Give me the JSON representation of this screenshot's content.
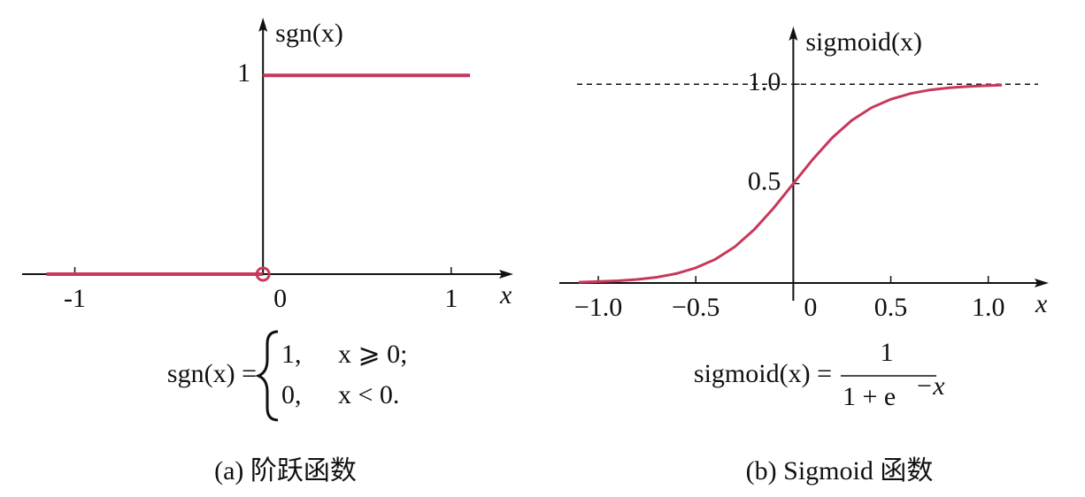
{
  "chart_data": [
    {
      "type": "line",
      "x_label": "x",
      "y_label": "sgn(x)",
      "x": [
        -1.15,
        0,
        0,
        0,
        1.1
      ],
      "values": [
        0,
        0,
        null,
        1,
        1
      ],
      "color": "#c8385a",
      "open_marker": [
        0,
        0
      ],
      "xlim": [
        -1.28,
        1.33
      ],
      "ylim": [
        0,
        1.29
      ],
      "xticks": [
        -1,
        0,
        1
      ],
      "yticks": [
        1
      ],
      "formula": {
        "lhs": "sgn(x) =",
        "cases": [
          [
            "1,",
            "x ⩾ 0;"
          ],
          [
            "0,",
            "x < 0."
          ]
        ]
      },
      "caption": "(a) 阶跃函数"
    },
    {
      "type": "line",
      "x_label": "x",
      "y_label": "sigmoid(x)",
      "x": [
        -1.1,
        -1.0,
        -0.9,
        -0.8,
        -0.7,
        -0.6,
        -0.5,
        -0.4,
        -0.3,
        -0.2,
        -0.1,
        0,
        0.1,
        0.2,
        0.3,
        0.4,
        0.5,
        0.6,
        0.7,
        0.8,
        0.9,
        1.0,
        1.07
      ],
      "values": [
        0.004,
        0.007,
        0.011,
        0.018,
        0.029,
        0.047,
        0.076,
        0.119,
        0.182,
        0.269,
        0.378,
        0.5,
        0.622,
        0.731,
        0.818,
        0.881,
        0.924,
        0.953,
        0.971,
        0.982,
        0.989,
        0.993,
        0.995
      ],
      "color": "#c8385a",
      "asymptote": 1,
      "xlim": [
        -1.2,
        1.31
      ],
      "ylim": [
        0,
        1.29
      ],
      "xticks": [
        {
          "value": -1.0,
          "label": "−1.0"
        },
        {
          "value": -0.5,
          "label": "−0.5"
        },
        0,
        0.5,
        {
          "value": 1.0,
          "label": "1.0"
        }
      ],
      "yticks": [
        0.5,
        {
          "value": 1.0,
          "label": "1.0"
        }
      ],
      "formula": {
        "lhs": "sigmoid(x) =",
        "numerator": "1",
        "denominator": "1 + e",
        "exponent": "−x"
      },
      "caption": "(b) Sigmoid 函数"
    }
  ]
}
